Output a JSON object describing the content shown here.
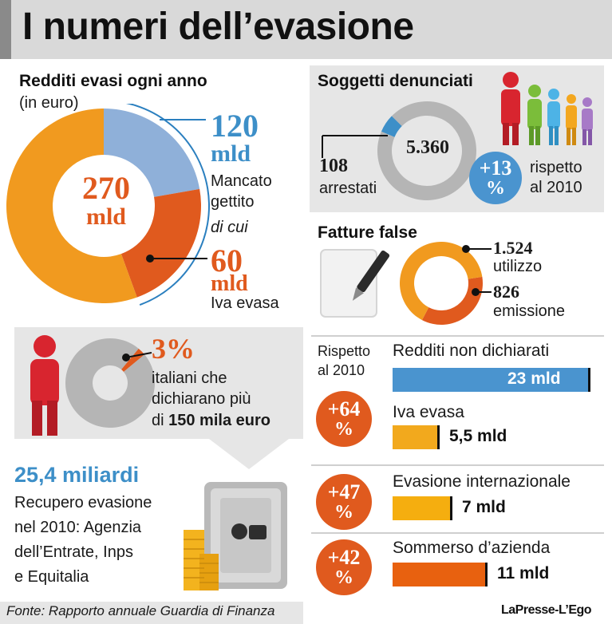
{
  "title": "I numeri dell’evasione",
  "redditi": {
    "heading": "Redditi evasi ogni anno",
    "unit": "(in euro)",
    "total_value": "270",
    "total_unit": "mld",
    "mancato_value": "120",
    "mancato_unit": "mld",
    "mancato_label_1": "Mancato",
    "mancato_label_2": "gettito",
    "di_cui": "di cui",
    "iva_value": "60",
    "iva_unit": "mld",
    "iva_label": "Iva evasa"
  },
  "soggetti": {
    "heading": "Soggetti denunciati",
    "total": "5.360",
    "arrestati_value": "108",
    "arrestati_label": "arrestati",
    "badge_1": "+13",
    "badge_2": "%",
    "rispetto_1": "rispetto",
    "rispetto_2": "al 2010"
  },
  "fatture": {
    "heading": "Fatture false",
    "utilizzo_value": "1.524",
    "utilizzo_label": "utilizzo",
    "emissione_value": "826",
    "emissione_label": "emissione"
  },
  "italiani": {
    "percent": "3%",
    "line_1": "italiani che",
    "line_2": "dichiarano più",
    "line_3_pre": "di ",
    "line_3_bold": "150 mila euro"
  },
  "recupero": {
    "value": "25,4 miliardi",
    "line_1": "Recupero evasione",
    "line_2": "nel 2010: Agenzia",
    "line_3": "dell’Entrate, Inps",
    "line_4": "e Equitalia"
  },
  "rispetto_header_1": "Rispetto",
  "rispetto_header_2": "al 2010",
  "badges": {
    "b64_1": "+64",
    "b64_2": "%",
    "b47_1": "+47",
    "b47_2": "%",
    "b42_1": "+42",
    "b42_2": "%"
  },
  "bars_text": {
    "redditi_label": "Redditi non dichiarati",
    "redditi_value": "23 mld",
    "iva_label": "Iva evasa",
    "iva_value": "5,5 mld",
    "internazionale_label": "Evasione internazionale",
    "internazionale_value": "7 mld",
    "sommerso_label": "Sommerso d’azienda",
    "sommerso_value": "11 mld"
  },
  "footer": {
    "source": "Fonte: Rapporto annuale Guardia di Finanza",
    "credit": "LaPresse-L’Ego"
  },
  "colors": {
    "blue": "#3d8fc8",
    "light_blue": "#8fb0d9",
    "orange": "#f19a1f",
    "dark_orange": "#e05a1e",
    "yellow_orange": "#f2a91d",
    "grey": "#b5b5b5"
  },
  "chart_data": [
    {
      "type": "pie",
      "categories": [
        "Mancato gettito",
        "di cui Iva evasa"
      ],
      "values": [
        120,
        60
      ],
      "total": 270,
      "unit": "mld"
    },
    {
      "type": "pie",
      "categories": [
        "arrestati",
        "soggetti denunciati"
      ],
      "values": [
        108,
        5360
      ]
    },
    {
      "type": "pie",
      "categories": [
        "utilizzo",
        "emissione"
      ],
      "values": [
        1524,
        826
      ]
    },
    {
      "type": "pie",
      "categories": [
        "italiani che dichiarano più di 150 mila euro"
      ],
      "values": [
        3
      ],
      "unit": "%"
    },
    {
      "type": "bar",
      "categories": [
        "Redditi non dichiarati",
        "Iva evasa",
        "Evasione internazionale",
        "Sommerso d’azienda"
      ],
      "values": [
        23,
        5.5,
        7,
        11
      ],
      "change_vs_2010_percent": [
        64,
        64,
        47,
        42
      ],
      "unit": "mld"
    }
  ]
}
